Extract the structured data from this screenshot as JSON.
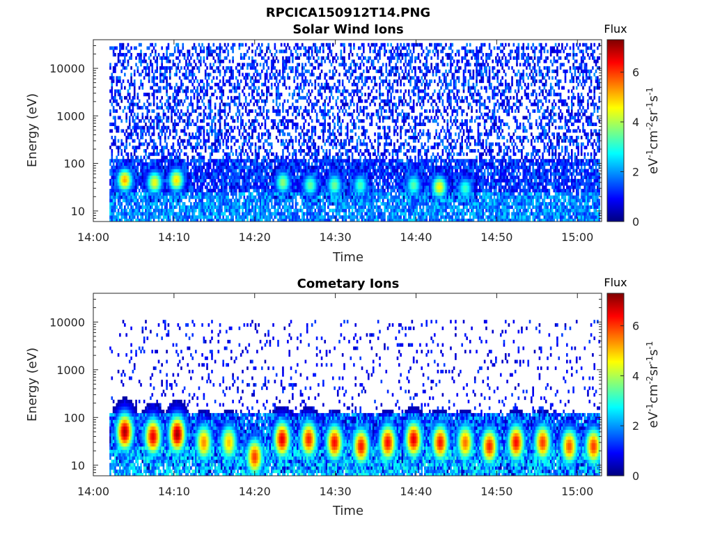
{
  "figure": {
    "title": "RPCICA150912T14.PNG"
  },
  "colormap": {
    "name": "jet",
    "stops": [
      "#00007f",
      "#0000ff",
      "#007fff",
      "#00ffff",
      "#7fff7f",
      "#ffff00",
      "#ff7f00",
      "#ff0000",
      "#7f0000"
    ]
  },
  "chart_data": [
    {
      "type": "heatmap",
      "title": "Solar Wind Ions",
      "xlabel": "Time",
      "ylabel": "Energy (eV)",
      "x_range": [
        "14:00",
        "15:03"
      ],
      "x_ticks": [
        "14:00",
        "14:10",
        "14:20",
        "14:30",
        "14:40",
        "14:50",
        "15:00"
      ],
      "y_scale": "log",
      "y_range": [
        6,
        40000
      ],
      "y_ticks": [
        "10",
        "100",
        "1000",
        "10000"
      ],
      "data_start": "14:02",
      "colorbar": {
        "title": "Flux",
        "label": "eV-1cm-2sr-1s-1",
        "range": [
          0,
          7.3
        ],
        "ticks": [
          "0",
          "2",
          "4",
          "6"
        ]
      },
      "low_energy_peaks": [
        {
          "time": "14:03.8",
          "energy": 45,
          "level": 5.2
        },
        {
          "time": "14:07.5",
          "energy": 40,
          "level": 4.5
        },
        {
          "time": "14:10.2",
          "energy": 45,
          "level": 4.8
        },
        {
          "time": "14:23.4",
          "energy": 40,
          "level": 3.8
        },
        {
          "time": "14:26.8",
          "energy": 35,
          "level": 3.5
        },
        {
          "time": "14:29.8",
          "energy": 35,
          "level": 3.6
        },
        {
          "time": "14:33.0",
          "energy": 35,
          "level": 3.3
        },
        {
          "time": "14:39.6",
          "energy": 35,
          "level": 3.4
        },
        {
          "time": "14:42.8",
          "energy": 32,
          "level": 4.6
        },
        {
          "time": "14:46.0",
          "energy": 30,
          "level": 3.2
        }
      ],
      "background": "sparse low flux (0.5-2) above 100 eV up to ~30000 eV"
    },
    {
      "type": "heatmap",
      "title": "Cometary Ions",
      "xlabel": "Time",
      "ylabel": "Energy (eV)",
      "x_range": [
        "14:00",
        "15:03"
      ],
      "x_ticks": [
        "14:00",
        "14:10",
        "14:20",
        "14:30",
        "14:40",
        "14:50",
        "15:00"
      ],
      "y_scale": "log",
      "y_range": [
        6,
        40000
      ],
      "y_ticks": [
        "10",
        "100",
        "1000",
        "10000"
      ],
      "data_start": "14:02",
      "colorbar": {
        "title": "Flux",
        "label": "eV-1cm-2sr-1s-1",
        "range": [
          0,
          7.3
        ],
        "ticks": [
          "0",
          "2",
          "4",
          "6"
        ]
      },
      "low_energy_peaks": [
        {
          "time": "14:03.8",
          "energy": 50,
          "level": 7.0
        },
        {
          "time": "14:07.3",
          "energy": 40,
          "level": 6.6
        },
        {
          "time": "14:10.3",
          "energy": 45,
          "level": 7.1
        },
        {
          "time": "14:13.6",
          "energy": 30,
          "level": 5.4
        },
        {
          "time": "14:16.7",
          "energy": 30,
          "level": 5.0
        },
        {
          "time": "14:19.9",
          "energy": 15,
          "level": 6.0
        },
        {
          "time": "14:23.3",
          "energy": 35,
          "level": 6.6
        },
        {
          "time": "14:26.6",
          "energy": 35,
          "level": 6.2
        },
        {
          "time": "14:29.8",
          "energy": 30,
          "level": 6.4
        },
        {
          "time": "14:33.1",
          "energy": 25,
          "level": 6.3
        },
        {
          "time": "14:36.4",
          "energy": 30,
          "level": 6.4
        },
        {
          "time": "14:39.6",
          "energy": 35,
          "level": 6.6
        },
        {
          "time": "14:42.9",
          "energy": 30,
          "level": 6.3
        },
        {
          "time": "14:46.0",
          "energy": 30,
          "level": 5.6
        },
        {
          "time": "14:49.0",
          "energy": 25,
          "level": 6.2
        },
        {
          "time": "14:52.3",
          "energy": 30,
          "level": 6.4
        },
        {
          "time": "14:55.6",
          "energy": 30,
          "level": 6.0
        },
        {
          "time": "14:58.9",
          "energy": 25,
          "level": 5.8
        },
        {
          "time": "15:01.9",
          "energy": 25,
          "level": 6.0
        }
      ],
      "background": "sparse low flux (0.5-1.5) scatter between 150 and 10000 eV"
    }
  ]
}
